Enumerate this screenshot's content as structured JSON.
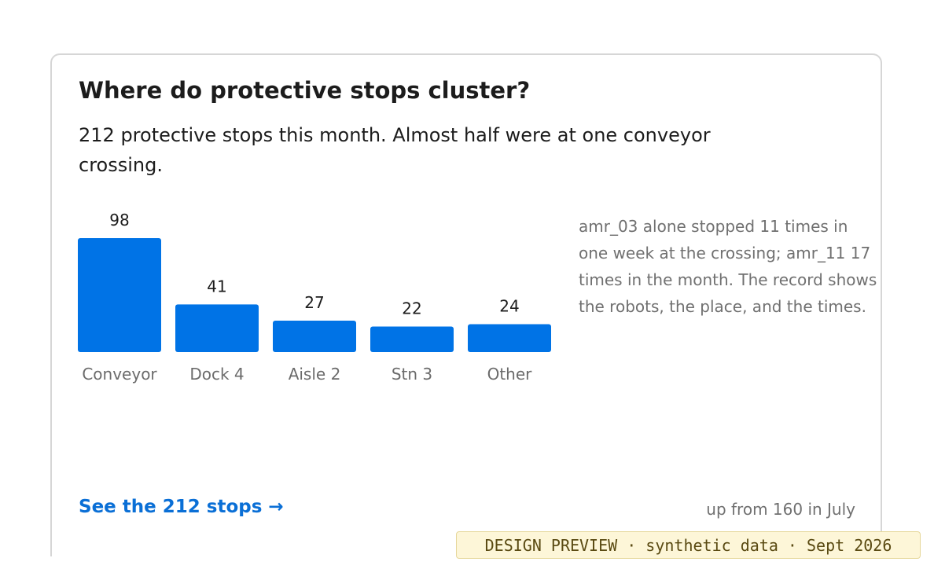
{
  "card": {
    "title": "Where do protective stops cluster?",
    "subtitle": "212 protective stops this month. Almost half were at one conveyor crossing.",
    "annotation": "amr_03 alone stopped 11 times in one week at the crossing; amr_11 17 times in the month. The record shows the robots, the place, and the times.",
    "link_label": "See the 212 stops →",
    "change_note": "up from 160 in July"
  },
  "badge": "DESIGN PREVIEW · synthetic data · Sept 2026",
  "colors": {
    "bar": "#0073e6",
    "link": "#0a6fd6"
  },
  "chart_data": {
    "type": "bar",
    "title": "",
    "xlabel": "",
    "ylabel": "",
    "categories": [
      "Conveyor",
      "Dock 4",
      "Aisle 2",
      "Stn 3",
      "Other"
    ],
    "values": [
      98,
      41,
      27,
      22,
      24
    ],
    "ylim": [
      0,
      98
    ],
    "grid": false,
    "legend": "none"
  }
}
